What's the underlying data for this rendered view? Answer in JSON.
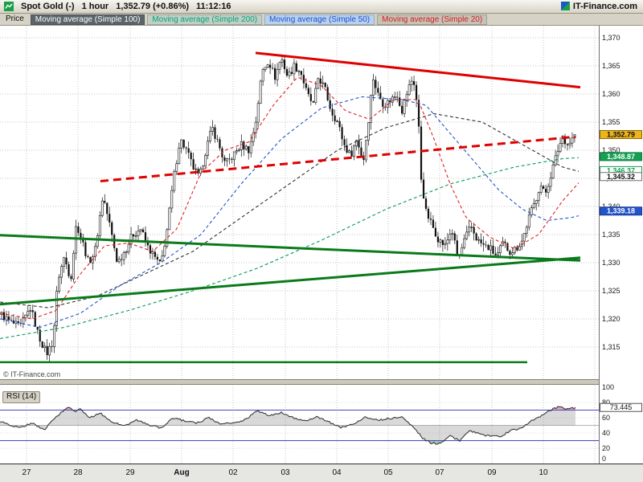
{
  "titlebar": {
    "symbol": "Spot Gold (-)",
    "timeframe": "1 hour",
    "price_change": "1,352.79 (+0.86%)",
    "time": "11:12:16",
    "brand": "IT-Finance.com"
  },
  "legend": {
    "items": [
      {
        "key": "price",
        "label": "Price",
        "fg": "#101010",
        "bg": "transparent"
      },
      {
        "key": "sma100",
        "label": "Moving average (Simple 100)",
        "fg": "#ffffff",
        "bg": "#5a646a"
      },
      {
        "key": "sma200",
        "label": "Moving average (Simple 200)",
        "fg": "#00a878",
        "bg": "#c2cec6"
      },
      {
        "key": "sma50",
        "label": "Moving average (Simple 50)",
        "fg": "#2050d0",
        "bg": "#b8d2ee"
      },
      {
        "key": "sma20",
        "label": "Moving average (Simple 20)",
        "fg": "#d42020",
        "bg": "#c6c2b8"
      }
    ]
  },
  "main_chart": {
    "copyright": "© IT-Finance.com"
  },
  "chart_data": {
    "type": "candlestick",
    "symbol": "Spot Gold",
    "timeframe": "1 hour",
    "last_price": 1352.79,
    "change_pct": "+0.86%",
    "quote_time": "11:12:16",
    "price_panel": {
      "ylim": [
        1309.5,
        1372.1
      ],
      "y_ticks": [
        {
          "v": 1370,
          "t": "1,370"
        },
        {
          "v": 1365,
          "t": "1,365"
        },
        {
          "v": 1360,
          "t": "1,360"
        },
        {
          "v": 1355,
          "t": "1,355"
        },
        {
          "v": 1350,
          "t": "1,350"
        },
        {
          "v": 1345,
          "t": "1,345"
        },
        {
          "v": 1340,
          "t": "1,340"
        },
        {
          "v": 1335,
          "t": "1,335"
        },
        {
          "v": 1330,
          "t": "1,330"
        },
        {
          "v": 1325,
          "t": "1,325"
        },
        {
          "v": 1320,
          "t": "1,320"
        },
        {
          "v": 1315,
          "t": "1,315"
        }
      ],
      "x_ticks": [
        {
          "x": 33,
          "label": "27"
        },
        {
          "x": 97,
          "label": "28"
        },
        {
          "x": 162,
          "label": "29"
        },
        {
          "x": 226,
          "label": "Aug",
          "b": true
        },
        {
          "x": 290,
          "label": "02"
        },
        {
          "x": 355,
          "label": "03"
        },
        {
          "x": 419,
          "label": "04"
        },
        {
          "x": 483,
          "label": "05"
        },
        {
          "x": 547,
          "label": "07"
        },
        {
          "x": 612,
          "label": "09"
        },
        {
          "x": 676,
          "label": "10"
        }
      ],
      "candles": {
        "count": 240,
        "x_start": 2,
        "x_step": 2.983,
        "up_color": "#ffffff",
        "down_color": "#101010"
      },
      "price_anchors": [
        [
          0,
          1321
        ],
        [
          12,
          1319.5
        ],
        [
          25,
          1318.5
        ],
        [
          38,
          1322
        ],
        [
          48,
          1317
        ],
        [
          58,
          1313.8
        ],
        [
          66,
          1316
        ],
        [
          72,
          1327
        ],
        [
          80,
          1331
        ],
        [
          88,
          1327
        ],
        [
          95,
          1337
        ],
        [
          102,
          1334
        ],
        [
          110,
          1330
        ],
        [
          118,
          1332
        ],
        [
          128,
          1342
        ],
        [
          136,
          1337
        ],
        [
          146,
          1330
        ],
        [
          155,
          1332
        ],
        [
          165,
          1335
        ],
        [
          175,
          1336
        ],
        [
          183,
          1333
        ],
        [
          192,
          1331
        ],
        [
          200,
          1329.5
        ],
        [
          208,
          1336
        ],
        [
          216,
          1345
        ],
        [
          224,
          1352
        ],
        [
          232,
          1350
        ],
        [
          240,
          1347
        ],
        [
          248,
          1345
        ],
        [
          256,
          1350
        ],
        [
          264,
          1354
        ],
        [
          272,
          1351
        ],
        [
          280,
          1347.5
        ],
        [
          290,
          1349
        ],
        [
          300,
          1351
        ],
        [
          310,
          1350
        ],
        [
          318,
          1355
        ],
        [
          326,
          1364
        ],
        [
          334,
          1366
        ],
        [
          342,
          1363
        ],
        [
          350,
          1366.5
        ],
        [
          358,
          1363
        ],
        [
          366,
          1365
        ],
        [
          374,
          1364
        ],
        [
          382,
          1360
        ],
        [
          390,
          1358
        ],
        [
          396,
          1363
        ],
        [
          404,
          1361
        ],
        [
          412,
          1357
        ],
        [
          420,
          1355
        ],
        [
          428,
          1351
        ],
        [
          436,
          1349
        ],
        [
          444,
          1352
        ],
        [
          452,
          1348
        ],
        [
          458,
          1355
        ],
        [
          464,
          1363
        ],
        [
          470,
          1360
        ],
        [
          478,
          1358
        ],
        [
          486,
          1359
        ],
        [
          494,
          1360
        ],
        [
          500,
          1357
        ],
        [
          508,
          1361
        ],
        [
          514,
          1363
        ],
        [
          520,
          1357
        ],
        [
          524,
          1345
        ],
        [
          530,
          1339
        ],
        [
          538,
          1336.5
        ],
        [
          546,
          1334
        ],
        [
          554,
          1333
        ],
        [
          562,
          1336
        ],
        [
          570,
          1330.5
        ],
        [
          578,
          1334
        ],
        [
          586,
          1336.5
        ],
        [
          594,
          1334
        ],
        [
          602,
          1333
        ],
        [
          610,
          1332.5
        ],
        [
          618,
          1331
        ],
        [
          626,
          1333.5
        ],
        [
          634,
          1332
        ],
        [
          642,
          1332.5
        ],
        [
          650,
          1334
        ],
        [
          658,
          1338
        ],
        [
          666,
          1341
        ],
        [
          672,
          1344
        ],
        [
          678,
          1342
        ],
        [
          686,
          1346
        ],
        [
          694,
          1350
        ],
        [
          700,
          1352.5
        ],
        [
          706,
          1351
        ],
        [
          712,
          1352
        ],
        [
          716,
          1352.8
        ]
      ],
      "moving_averages": [
        {
          "name": "SMA 100",
          "period": 100,
          "color": "#303030",
          "anchors": [
            [
              0,
              1323
            ],
            [
              60,
              1322
            ],
            [
              120,
              1324
            ],
            [
              180,
              1328
            ],
            [
              240,
              1332
            ],
            [
              300,
              1338
            ],
            [
              360,
              1344
            ],
            [
              420,
              1350
            ],
            [
              480,
              1354
            ],
            [
              540,
              1356.5
            ],
            [
              600,
              1355
            ],
            [
              650,
              1351
            ],
            [
              700,
              1347
            ],
            [
              745,
              1345.3
            ]
          ]
        },
        {
          "name": "SMA 200",
          "period": 200,
          "color": "#0a9a58",
          "anchors": [
            [
              0,
              1316.5
            ],
            [
              80,
              1318.5
            ],
            [
              160,
              1321.5
            ],
            [
              240,
              1325
            ],
            [
              320,
              1329
            ],
            [
              400,
              1334
            ],
            [
              480,
              1339.5
            ],
            [
              560,
              1344
            ],
            [
              640,
              1347
            ],
            [
              700,
              1348.5
            ],
            [
              745,
              1348.9
            ]
          ]
        },
        {
          "name": "SMA 50",
          "period": 50,
          "color": "#2353cc",
          "anchors": [
            [
              0,
              1320
            ],
            [
              50,
              1318.5
            ],
            [
              100,
              1321
            ],
            [
              150,
              1326
            ],
            [
              200,
              1330
            ],
            [
              250,
              1335
            ],
            [
              300,
              1344
            ],
            [
              350,
              1352
            ],
            [
              400,
              1357.5
            ],
            [
              450,
              1359.5
            ],
            [
              500,
              1359
            ],
            [
              530,
              1358
            ],
            [
              560,
              1353
            ],
            [
              590,
              1348
            ],
            [
              620,
              1343
            ],
            [
              650,
              1339.5
            ],
            [
              680,
              1337.5
            ],
            [
              710,
              1338
            ],
            [
              745,
              1339.2
            ]
          ]
        },
        {
          "name": "SMA 20",
          "period": 20,
          "color": "#dd2222",
          "anchors": [
            [
              0,
              1321
            ],
            [
              40,
              1320
            ],
            [
              70,
              1321.5
            ],
            [
              100,
              1328
            ],
            [
              130,
              1333
            ],
            [
              160,
              1333.5
            ],
            [
              190,
              1332
            ],
            [
              220,
              1336
            ],
            [
              250,
              1346
            ],
            [
              280,
              1350
            ],
            [
              310,
              1351.5
            ],
            [
              340,
              1358
            ],
            [
              370,
              1363
            ],
            [
              400,
              1361.5
            ],
            [
              430,
              1357
            ],
            [
              460,
              1355.5
            ],
            [
              490,
              1359
            ],
            [
              520,
              1359
            ],
            [
              540,
              1352
            ],
            [
              560,
              1344
            ],
            [
              580,
              1338
            ],
            [
              610,
              1334.5
            ],
            [
              640,
              1332.5
            ],
            [
              670,
              1335
            ],
            [
              700,
              1341
            ],
            [
              725,
              1345
            ],
            [
              745,
              1346.4
            ]
          ]
        }
      ],
      "trendlines": [
        {
          "x1": 318,
          "p1": 1367.3,
          "x2": 722,
          "p2": 1361.2,
          "color": "#e00000",
          "width": 3,
          "dash": null
        },
        {
          "x1": 125,
          "p1": 1344.5,
          "x2": 716,
          "p2": 1352.4,
          "color": "#e00000",
          "width": 3,
          "dash": [
            10,
            6
          ]
        },
        {
          "x1": 0,
          "p1": 1334.9,
          "x2": 722,
          "p2": 1330.4,
          "color": "#0a7a1a",
          "width": 3,
          "dash": null
        },
        {
          "x1": 0,
          "p1": 1322.6,
          "x2": 722,
          "p2": 1330.9,
          "color": "#0a7a1a",
          "width": 3,
          "dash": null
        },
        {
          "x1": 0,
          "p1": 1312.3,
          "x2": 656,
          "p2": 1312.3,
          "color": "#0a7a1a",
          "width": 2.5,
          "dash": null
        }
      ],
      "price_labels": [
        {
          "value": "1,352.79",
          "price": 1352.79,
          "bg": "#eeb41e",
          "fg": "#101010",
          "border": "#8a6a00"
        },
        {
          "value": "1,348.87",
          "price": 1348.87,
          "bg": "#15a054",
          "fg": "#ffffff",
          "border": "#0a7a3a"
        },
        {
          "value": "1,346.37",
          "price": 1346.37,
          "bg": "#ffffff",
          "fg": "#15a054",
          "border": "#15a054"
        },
        {
          "value": "1,345.32",
          "price": 1345.32,
          "bg": "#ffffff",
          "fg": "#101010",
          "border": "#707070"
        },
        {
          "value": "1,339.18",
          "price": 1339.18,
          "bg": "#2353cc",
          "fg": "#ffffff",
          "border": "#16388f"
        }
      ]
    },
    "rsi": {
      "label": "RSI (14)",
      "period": 14,
      "last": 73.445,
      "last_label": "73.445",
      "levels": [
        70,
        30
      ],
      "level_color": "#4848c8",
      "line_color": "#383838",
      "fill_color": "rgba(120,120,120,0.28)",
      "overbought_fill": "rgba(235,130,160,0.55)",
      "oversold_fill": "rgba(120,195,120,0.55)",
      "y_ticks": [
        100,
        80,
        60,
        40,
        20,
        0
      ],
      "anchors": [
        [
          0,
          55
        ],
        [
          12,
          50
        ],
        [
          25,
          47
        ],
        [
          40,
          53
        ],
        [
          55,
          44
        ],
        [
          70,
          62
        ],
        [
          85,
          74
        ],
        [
          92,
          68
        ],
        [
          100,
          71
        ],
        [
          112,
          60
        ],
        [
          125,
          66
        ],
        [
          140,
          54
        ],
        [
          155,
          49
        ],
        [
          170,
          57
        ],
        [
          185,
          51
        ],
        [
          200,
          46
        ],
        [
          215,
          60
        ],
        [
          230,
          56
        ],
        [
          245,
          53
        ],
        [
          260,
          60
        ],
        [
          275,
          51
        ],
        [
          290,
          54
        ],
        [
          305,
          57
        ],
        [
          320,
          69
        ],
        [
          335,
          63
        ],
        [
          350,
          67
        ],
        [
          365,
          60
        ],
        [
          380,
          56
        ],
        [
          395,
          61
        ],
        [
          410,
          54
        ],
        [
          425,
          47
        ],
        [
          440,
          52
        ],
        [
          455,
          61
        ],
        [
          470,
          57
        ],
        [
          485,
          59
        ],
        [
          500,
          61
        ],
        [
          515,
          48
        ],
        [
          525,
          34
        ],
        [
          535,
          27
        ],
        [
          548,
          26
        ],
        [
          560,
          36
        ],
        [
          572,
          30
        ],
        [
          585,
          43
        ],
        [
          598,
          38
        ],
        [
          610,
          36
        ],
        [
          622,
          35
        ],
        [
          635,
          43
        ],
        [
          648,
          46
        ],
        [
          660,
          55
        ],
        [
          672,
          62
        ],
        [
          685,
          70
        ],
        [
          695,
          74
        ],
        [
          705,
          71
        ],
        [
          716,
          73.4
        ]
      ]
    }
  }
}
